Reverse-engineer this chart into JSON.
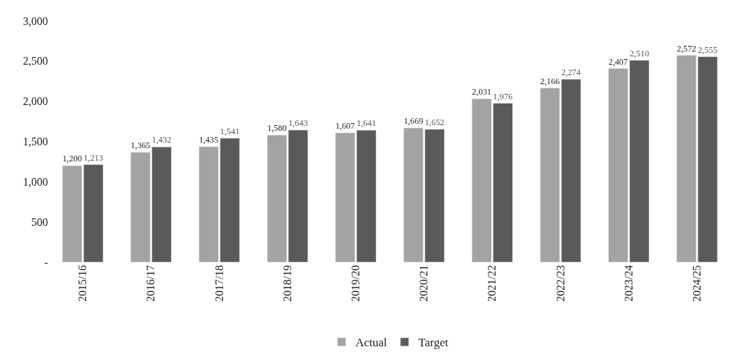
{
  "chart_data": {
    "type": "bar",
    "categories": [
      "2015/16",
      "2016/17",
      "2017/18",
      "2018/19",
      "2019/20",
      "2020/21",
      "2021/22",
      "2022/23",
      "2023/24",
      "2024/25"
    ],
    "series": [
      {
        "name": "Actual",
        "color": "#a3a3a3",
        "values": [
          1200,
          1365,
          1435,
          1580,
          1607,
          1669,
          2031,
          2166,
          2407,
          2572
        ],
        "value_labels": [
          "1,200",
          "1,365",
          "1,435",
          "1,580",
          "1,607",
          "1,669",
          "2,031",
          "2,166",
          "2,407",
          "2,572"
        ]
      },
      {
        "name": "Target",
        "color": "#5a5a5a",
        "values": [
          1213,
          1432,
          1541,
          1643,
          1641,
          1652,
          1976,
          2274,
          2510,
          2555
        ],
        "value_labels": [
          "1,213",
          "1,432",
          "1,541",
          "1,643",
          "1,641",
          "1,652",
          "1,976",
          "2,274",
          "2,510",
          "2,555"
        ]
      }
    ],
    "ylim": [
      0,
      3000
    ],
    "yticks": [
      {
        "value": 0,
        "label": "-"
      },
      {
        "value": 500,
        "label": "500"
      },
      {
        "value": 1000,
        "label": "1,000"
      },
      {
        "value": 1500,
        "label": "1,500"
      },
      {
        "value": 2000,
        "label": "2,000"
      },
      {
        "value": 2500,
        "label": "2,500"
      },
      {
        "value": 3000,
        "label": "3,000"
      }
    ],
    "legend": "bottom",
    "grid": false
  }
}
